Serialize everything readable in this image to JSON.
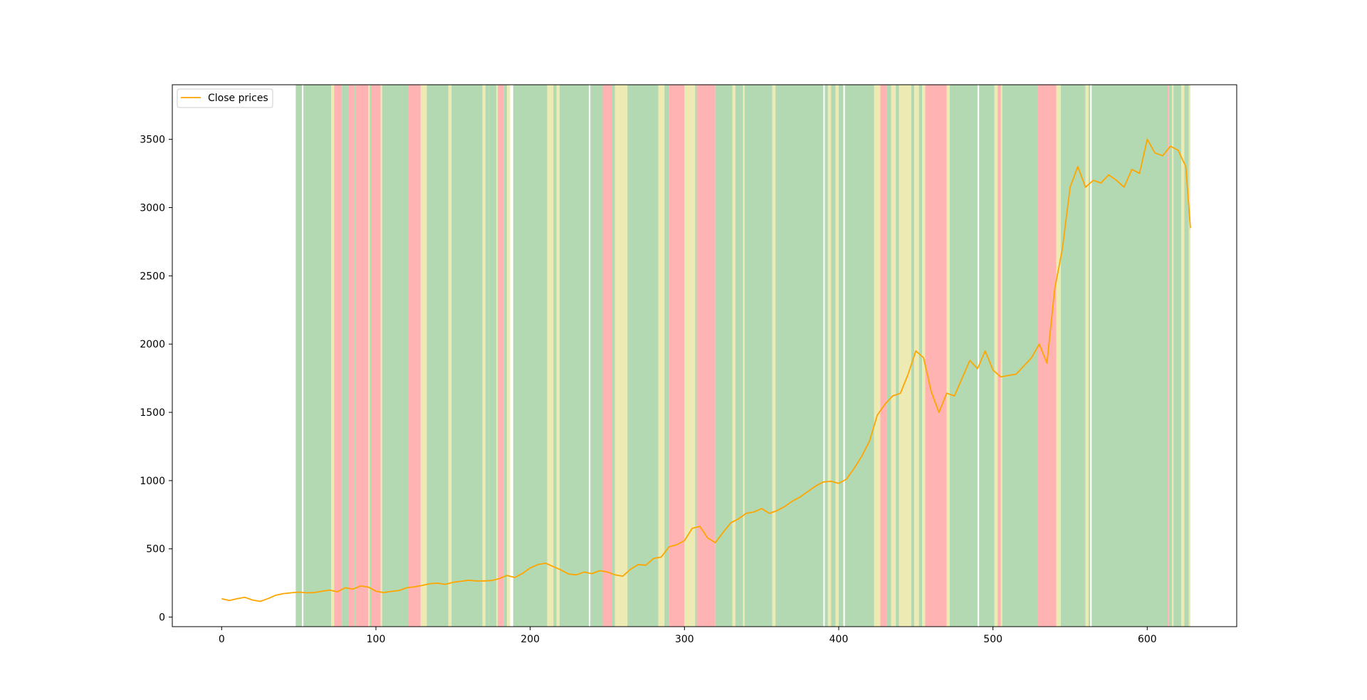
{
  "chart_data": {
    "type": "line",
    "title": "",
    "xlabel": "",
    "ylabel": "",
    "xlim": [
      -32,
      658
    ],
    "ylim": [
      -70,
      3900
    ],
    "x_ticks": [
      0,
      100,
      200,
      300,
      400,
      500,
      600
    ],
    "y_ticks": [
      0,
      500,
      1000,
      1500,
      2000,
      2500,
      3000,
      3500
    ],
    "grid": false,
    "legend": {
      "position": "upper-left",
      "entries": [
        {
          "label": "Close prices",
          "color": "#ffa500"
        }
      ]
    },
    "series": [
      {
        "name": "Close prices",
        "color": "#ffa500",
        "points": [
          [
            0,
            135
          ],
          [
            5,
            122
          ],
          [
            10,
            135
          ],
          [
            15,
            145
          ],
          [
            20,
            125
          ],
          [
            25,
            115
          ],
          [
            30,
            135
          ],
          [
            35,
            160
          ],
          [
            40,
            172
          ],
          [
            45,
            178
          ],
          [
            50,
            183
          ],
          [
            55,
            178
          ],
          [
            60,
            180
          ],
          [
            65,
            190
          ],
          [
            70,
            198
          ],
          [
            75,
            185
          ],
          [
            80,
            215
          ],
          [
            85,
            205
          ],
          [
            90,
            228
          ],
          [
            95,
            220
          ],
          [
            100,
            190
          ],
          [
            105,
            180
          ],
          [
            110,
            188
          ],
          [
            115,
            195
          ],
          [
            120,
            215
          ],
          [
            125,
            222
          ],
          [
            130,
            232
          ],
          [
            135,
            245
          ],
          [
            140,
            248
          ],
          [
            145,
            240
          ],
          [
            150,
            255
          ],
          [
            155,
            262
          ],
          [
            160,
            270
          ],
          [
            165,
            265
          ],
          [
            170,
            265
          ],
          [
            175,
            268
          ],
          [
            180,
            282
          ],
          [
            185,
            305
          ],
          [
            190,
            290
          ],
          [
            195,
            320
          ],
          [
            200,
            360
          ],
          [
            205,
            385
          ],
          [
            210,
            395
          ],
          [
            215,
            370
          ],
          [
            220,
            345
          ],
          [
            225,
            315
          ],
          [
            230,
            310
          ],
          [
            235,
            330
          ],
          [
            240,
            318
          ],
          [
            245,
            340
          ],
          [
            250,
            330
          ],
          [
            255,
            310
          ],
          [
            260,
            300
          ],
          [
            265,
            350
          ],
          [
            270,
            385
          ],
          [
            275,
            380
          ],
          [
            280,
            430
          ],
          [
            285,
            440
          ],
          [
            290,
            515
          ],
          [
            295,
            530
          ],
          [
            300,
            560
          ],
          [
            305,
            650
          ],
          [
            310,
            665
          ],
          [
            315,
            580
          ],
          [
            320,
            545
          ],
          [
            325,
            620
          ],
          [
            330,
            690
          ],
          [
            335,
            720
          ],
          [
            340,
            760
          ],
          [
            345,
            770
          ],
          [
            350,
            795
          ],
          [
            355,
            760
          ],
          [
            360,
            780
          ],
          [
            365,
            810
          ],
          [
            370,
            850
          ],
          [
            375,
            880
          ],
          [
            380,
            920
          ],
          [
            385,
            960
          ],
          [
            390,
            990
          ],
          [
            395,
            995
          ],
          [
            400,
            980
          ],
          [
            405,
            1010
          ],
          [
            410,
            1090
          ],
          [
            415,
            1180
          ],
          [
            420,
            1290
          ],
          [
            425,
            1480
          ],
          [
            430,
            1560
          ],
          [
            435,
            1620
          ],
          [
            440,
            1640
          ],
          [
            445,
            1780
          ],
          [
            450,
            1950
          ],
          [
            455,
            1900
          ],
          [
            460,
            1650
          ],
          [
            465,
            1500
          ],
          [
            470,
            1640
          ],
          [
            475,
            1620
          ],
          [
            480,
            1750
          ],
          [
            485,
            1880
          ],
          [
            490,
            1820
          ],
          [
            495,
            1950
          ],
          [
            500,
            1810
          ],
          [
            505,
            1760
          ],
          [
            510,
            1770
          ],
          [
            515,
            1780
          ],
          [
            520,
            1840
          ],
          [
            525,
            1900
          ],
          [
            530,
            2000
          ],
          [
            535,
            1860
          ],
          [
            540,
            2400
          ],
          [
            545,
            2700
          ],
          [
            550,
            3150
          ],
          [
            555,
            3300
          ],
          [
            560,
            3150
          ],
          [
            565,
            3200
          ],
          [
            570,
            3180
          ],
          [
            575,
            3240
          ],
          [
            580,
            3200
          ],
          [
            585,
            3150
          ],
          [
            590,
            3280
          ],
          [
            595,
            3250
          ],
          [
            600,
            3500
          ],
          [
            605,
            3400
          ],
          [
            610,
            3380
          ],
          [
            615,
            3450
          ],
          [
            620,
            3420
          ],
          [
            625,
            3300
          ],
          [
            628,
            2850
          ]
        ]
      }
    ],
    "regions": [
      {
        "x0": 48,
        "x1": 52,
        "label": "green"
      },
      {
        "x0": 53,
        "x1": 71,
        "label": "green"
      },
      {
        "x0": 71,
        "x1": 73,
        "label": "yellow"
      },
      {
        "x0": 73,
        "x1": 78,
        "label": "red"
      },
      {
        "x0": 78,
        "x1": 82,
        "label": "green"
      },
      {
        "x0": 82,
        "x1": 86,
        "label": "red"
      },
      {
        "x0": 86,
        "x1": 87,
        "label": "green"
      },
      {
        "x0": 87,
        "x1": 95,
        "label": "red"
      },
      {
        "x0": 95,
        "x1": 96,
        "label": "yellow"
      },
      {
        "x0": 96,
        "x1": 97,
        "label": "green"
      },
      {
        "x0": 97,
        "x1": 103,
        "label": "red"
      },
      {
        "x0": 103,
        "x1": 104,
        "label": "yellow"
      },
      {
        "x0": 104,
        "x1": 121,
        "label": "green"
      },
      {
        "x0": 121,
        "x1": 129,
        "label": "red"
      },
      {
        "x0": 129,
        "x1": 133,
        "label": "yellow"
      },
      {
        "x0": 133,
        "x1": 147,
        "label": "green"
      },
      {
        "x0": 147,
        "x1": 149,
        "label": "yellow"
      },
      {
        "x0": 149,
        "x1": 157,
        "label": "green"
      },
      {
        "x0": 157,
        "x1": 169,
        "label": "green"
      },
      {
        "x0": 169,
        "x1": 171,
        "label": "yellow"
      },
      {
        "x0": 171,
        "x1": 173,
        "label": "green"
      },
      {
        "x0": 173,
        "x1": 178,
        "label": "green"
      },
      {
        "x0": 178,
        "x1": 179,
        "label": "yellow"
      },
      {
        "x0": 179,
        "x1": 183,
        "label": "red"
      },
      {
        "x0": 183,
        "x1": 185,
        "label": "green"
      },
      {
        "x0": 185,
        "x1": 187,
        "label": "yellow"
      },
      {
        "x0": 189,
        "x1": 211,
        "label": "green"
      },
      {
        "x0": 211,
        "x1": 215,
        "label": "yellow"
      },
      {
        "x0": 215,
        "x1": 217,
        "label": "green"
      },
      {
        "x0": 217,
        "x1": 219,
        "label": "yellow"
      },
      {
        "x0": 219,
        "x1": 238,
        "label": "green"
      },
      {
        "x0": 239,
        "x1": 247,
        "label": "green"
      },
      {
        "x0": 247,
        "x1": 253,
        "label": "red"
      },
      {
        "x0": 253,
        "x1": 255,
        "label": "green"
      },
      {
        "x0": 255,
        "x1": 257,
        "label": "yellow"
      },
      {
        "x0": 257,
        "x1": 263,
        "label": "yellow"
      },
      {
        "x0": 263,
        "x1": 283,
        "label": "green"
      },
      {
        "x0": 283,
        "x1": 287,
        "label": "yellow"
      },
      {
        "x0": 287,
        "x1": 290,
        "label": "green"
      },
      {
        "x0": 290,
        "x1": 300,
        "label": "red"
      },
      {
        "x0": 300,
        "x1": 307,
        "label": "yellow"
      },
      {
        "x0": 307,
        "x1": 308,
        "label": "green"
      },
      {
        "x0": 308,
        "x1": 320,
        "label": "red"
      },
      {
        "x0": 320,
        "x1": 331,
        "label": "green"
      },
      {
        "x0": 331,
        "x1": 333,
        "label": "yellow"
      },
      {
        "x0": 333,
        "x1": 338,
        "label": "green"
      },
      {
        "x0": 338,
        "x1": 339,
        "label": "yellow"
      },
      {
        "x0": 339,
        "x1": 357,
        "label": "green"
      },
      {
        "x0": 357,
        "x1": 359,
        "label": "yellow"
      },
      {
        "x0": 359,
        "x1": 390,
        "label": "green"
      },
      {
        "x0": 391,
        "x1": 393,
        "label": "green"
      },
      {
        "x0": 393,
        "x1": 395,
        "label": "yellow"
      },
      {
        "x0": 395,
        "x1": 398,
        "label": "green"
      },
      {
        "x0": 398,
        "x1": 400,
        "label": "yellow"
      },
      {
        "x0": 400,
        "x1": 403,
        "label": "green"
      },
      {
        "x0": 404,
        "x1": 423,
        "label": "green"
      },
      {
        "x0": 423,
        "x1": 427,
        "label": "yellow"
      },
      {
        "x0": 427,
        "x1": 431,
        "label": "red"
      },
      {
        "x0": 431,
        "x1": 434,
        "label": "green"
      },
      {
        "x0": 434,
        "x1": 437,
        "label": "yellow"
      },
      {
        "x0": 437,
        "x1": 439,
        "label": "green"
      },
      {
        "x0": 439,
        "x1": 447,
        "label": "yellow"
      },
      {
        "x0": 447,
        "x1": 449,
        "label": "green"
      },
      {
        "x0": 449,
        "x1": 452,
        "label": "yellow"
      },
      {
        "x0": 452,
        "x1": 454,
        "label": "green"
      },
      {
        "x0": 454,
        "x1": 456,
        "label": "yellow"
      },
      {
        "x0": 456,
        "x1": 470,
        "label": "red"
      },
      {
        "x0": 470,
        "x1": 472,
        "label": "yellow"
      },
      {
        "x0": 472,
        "x1": 490,
        "label": "green"
      },
      {
        "x0": 491,
        "x1": 501,
        "label": "green"
      },
      {
        "x0": 501,
        "x1": 503,
        "label": "yellow"
      },
      {
        "x0": 503,
        "x1": 505,
        "label": "red"
      },
      {
        "x0": 505,
        "x1": 506,
        "label": "yellow"
      },
      {
        "x0": 506,
        "x1": 529,
        "label": "green"
      },
      {
        "x0": 529,
        "x1": 541,
        "label": "red"
      },
      {
        "x0": 541,
        "x1": 544,
        "label": "yellow"
      },
      {
        "x0": 544,
        "x1": 560,
        "label": "green"
      },
      {
        "x0": 560,
        "x1": 562,
        "label": "yellow"
      },
      {
        "x0": 562,
        "x1": 563,
        "label": "green"
      },
      {
        "x0": 564,
        "x1": 613,
        "label": "green"
      },
      {
        "x0": 613,
        "x1": 614,
        "label": "red"
      },
      {
        "x0": 614,
        "x1": 616,
        "label": "green"
      },
      {
        "x0": 616,
        "x1": 617,
        "label": "yellow"
      },
      {
        "x0": 617,
        "x1": 622,
        "label": "green"
      },
      {
        "x0": 622,
        "x1": 624,
        "label": "yellow"
      },
      {
        "x0": 624,
        "x1": 627,
        "label": "green"
      },
      {
        "x0": 627,
        "x1": 628,
        "label": "yellow"
      }
    ],
    "region_colors": {
      "green": "#b3d9b3",
      "yellow": "#eeeab4",
      "red": "#ffb3b3"
    }
  }
}
